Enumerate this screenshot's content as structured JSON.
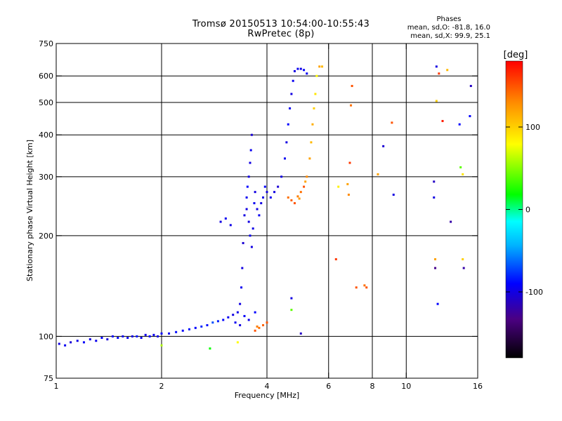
{
  "header": {
    "title_line1": "Tromsø 20150513 10:54:00-10:55:43",
    "title_line2": "RwPretec (8p)",
    "phase_title": "Phases",
    "phase_line1": "mean, sd,O: -81.8, 16.0",
    "phase_line2": "mean, sd,X:  99.9, 25.1"
  },
  "chart_data": {
    "type": "scatter",
    "xlabel": "Frequency [MHz]",
    "ylabel": "Stationary phase Virtual Height [km]",
    "x_scale": "log",
    "y_scale": "log",
    "xlim": [
      1,
      16
    ],
    "ylim": [
      75,
      750
    ],
    "x_ticks": [
      1,
      2,
      4,
      6,
      8,
      10,
      16
    ],
    "y_ticks": [
      75,
      100,
      200,
      300,
      400,
      500,
      600,
      750
    ],
    "x_grid": [
      2,
      4,
      6,
      8,
      10
    ],
    "y_grid": [
      100,
      200,
      300,
      400,
      500,
      600
    ],
    "grid": true,
    "colorbar": {
      "label": "[deg]",
      "ticks": [
        100,
        0,
        -100
      ],
      "range": [
        -180,
        180
      ],
      "colormap": [
        "#000000",
        "#4b0082",
        "#0000ff",
        "#00b4ff",
        "#00ffff",
        "#00ff00",
        "#ffff00",
        "#ff8c00",
        "#ff0000"
      ]
    },
    "series": [
      {
        "points": [
          [
            1.02,
            95,
            -100
          ],
          [
            1.06,
            94,
            -95
          ],
          [
            1.1,
            96,
            -105
          ],
          [
            1.15,
            97,
            -98
          ],
          [
            1.2,
            96,
            -92
          ],
          [
            1.25,
            98,
            -100
          ],
          [
            1.3,
            97,
            -96
          ],
          [
            1.35,
            99,
            -90
          ],
          [
            1.4,
            98,
            -102
          ],
          [
            1.45,
            100,
            -95
          ],
          [
            1.5,
            99,
            -88
          ],
          [
            1.55,
            100,
            -97
          ],
          [
            1.6,
            99,
            -93
          ],
          [
            1.65,
            100,
            -100
          ],
          [
            1.7,
            100,
            -85
          ],
          [
            1.75,
            99,
            -95
          ],
          [
            1.8,
            101,
            -98
          ],
          [
            1.85,
            100,
            -90
          ],
          [
            1.9,
            101,
            -94
          ],
          [
            1.95,
            100,
            -99
          ],
          [
            2.0,
            102,
            -92
          ],
          [
            2.1,
            102,
            -96
          ],
          [
            2.2,
            103,
            -88
          ],
          [
            2.3,
            104,
            -92
          ],
          [
            2.4,
            105,
            -85
          ],
          [
            2.5,
            106,
            -90
          ],
          [
            2.6,
            107,
            -80
          ],
          [
            2.7,
            108,
            -87
          ],
          [
            2.8,
            110,
            -70
          ],
          [
            2.9,
            111,
            -82
          ],
          [
            3.0,
            112,
            -90
          ],
          [
            3.1,
            114,
            -95
          ],
          [
            3.2,
            116,
            -100
          ],
          [
            3.3,
            118,
            -98
          ],
          [
            3.35,
            125,
            -100
          ],
          [
            3.38,
            140,
            -95
          ],
          [
            3.4,
            160,
            -100
          ],
          [
            3.42,
            190,
            -105
          ],
          [
            3.45,
            230,
            -100
          ],
          [
            3.5,
            260,
            -95
          ],
          [
            3.52,
            280,
            -90
          ],
          [
            3.55,
            300,
            -100
          ],
          [
            3.58,
            330,
            -100
          ],
          [
            3.6,
            360,
            -95
          ],
          [
            3.62,
            400,
            -105
          ],
          [
            3.55,
            220,
            -100
          ],
          [
            3.58,
            200,
            -95
          ],
          [
            3.62,
            185,
            -100
          ],
          [
            3.65,
            210,
            -98
          ],
          [
            3.5,
            240,
            -100
          ],
          [
            3.68,
            250,
            -95
          ],
          [
            3.7,
            270,
            -100
          ],
          [
            3.75,
            240,
            -100
          ],
          [
            3.8,
            230,
            -95
          ],
          [
            3.85,
            250,
            -100
          ],
          [
            3.9,
            260,
            -98
          ],
          [
            3.95,
            280,
            -90
          ],
          [
            4.0,
            270,
            -100
          ],
          [
            4.1,
            260,
            -95
          ],
          [
            4.2,
            270,
            -100
          ],
          [
            4.3,
            280,
            -105
          ],
          [
            4.4,
            300,
            -100
          ],
          [
            4.5,
            340,
            -95
          ],
          [
            4.55,
            380,
            -100
          ],
          [
            4.6,
            430,
            -90
          ],
          [
            4.65,
            480,
            -95
          ],
          [
            4.7,
            530,
            -100
          ],
          [
            4.75,
            580,
            -95
          ],
          [
            4.8,
            620,
            -100
          ],
          [
            4.9,
            630,
            -95
          ],
          [
            5.0,
            630,
            -98
          ],
          [
            5.1,
            625,
            -92
          ],
          [
            5.2,
            610,
            -95
          ],
          [
            3.25,
            110,
            -95
          ],
          [
            3.35,
            108,
            -100
          ],
          [
            3.45,
            115,
            -92
          ],
          [
            3.55,
            112,
            -98
          ],
          [
            3.7,
            118,
            -90
          ],
          [
            2.95,
            220,
            -100
          ],
          [
            3.05,
            225,
            -95
          ],
          [
            3.15,
            215,
            -98
          ],
          [
            3.7,
            104,
            150
          ],
          [
            3.8,
            106,
            140
          ],
          [
            3.9,
            108,
            145
          ],
          [
            4.0,
            110,
            150
          ],
          [
            3.75,
            107,
            135
          ],
          [
            4.6,
            260,
            140
          ],
          [
            4.7,
            255,
            145
          ],
          [
            4.8,
            250,
            150
          ],
          [
            4.9,
            262,
            135
          ],
          [
            5.0,
            270,
            140
          ],
          [
            5.1,
            280,
            150
          ],
          [
            5.2,
            300,
            130
          ],
          [
            5.3,
            340,
            120
          ],
          [
            5.35,
            380,
            110
          ],
          [
            5.4,
            430,
            115
          ],
          [
            5.45,
            480,
            100
          ],
          [
            5.5,
            530,
            90
          ],
          [
            5.55,
            600,
            80
          ],
          [
            5.65,
            640,
            120
          ],
          [
            5.75,
            640,
            110
          ],
          [
            4.95,
            258,
            125
          ],
          [
            5.15,
            290,
            120
          ],
          [
            6.3,
            170,
            160
          ],
          [
            6.4,
            280,
            85
          ],
          [
            6.8,
            285,
            120
          ],
          [
            6.85,
            265,
            130
          ],
          [
            6.9,
            330,
            160
          ],
          [
            6.95,
            490,
            140
          ],
          [
            7.0,
            560,
            150
          ],
          [
            7.2,
            140,
            150
          ],
          [
            7.6,
            142,
            140
          ],
          [
            7.7,
            140,
            150
          ],
          [
            8.3,
            305,
            120
          ],
          [
            8.6,
            370,
            -105
          ],
          [
            9.1,
            435,
            150
          ],
          [
            9.2,
            265,
            -100
          ],
          [
            5.0,
            102,
            -110
          ],
          [
            4.7,
            130,
            -100
          ],
          [
            4.7,
            120,
            40
          ],
          [
            12.2,
            640,
            -100
          ],
          [
            12.4,
            610,
            160
          ],
          [
            12.2,
            505,
            100
          ],
          [
            12.7,
            440,
            170
          ],
          [
            13.1,
            625,
            110
          ],
          [
            12.0,
            290,
            -110
          ],
          [
            12.0,
            260,
            -100
          ],
          [
            13.4,
            220,
            -120
          ],
          [
            12.1,
            170,
            120
          ],
          [
            12.1,
            160,
            -130
          ],
          [
            14.5,
            170,
            100
          ],
          [
            14.6,
            160,
            -120
          ],
          [
            12.3,
            125,
            -90
          ],
          [
            14.3,
            320,
            40
          ],
          [
            14.5,
            305,
            90
          ],
          [
            14.2,
            430,
            -90
          ],
          [
            15.3,
            560,
            -110
          ],
          [
            15.2,
            455,
            -90
          ],
          [
            2.0,
            94,
            60
          ],
          [
            2.75,
            92,
            20
          ],
          [
            3.3,
            96,
            80
          ]
        ]
      }
    ]
  }
}
